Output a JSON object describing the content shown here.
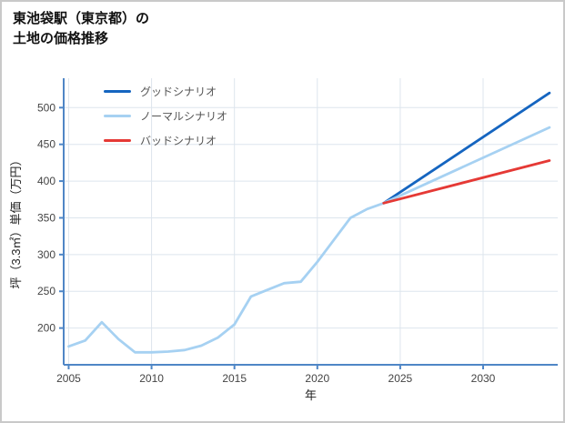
{
  "title": {
    "line1": "東池袋駅（東京都）の",
    "line2": "土地の価格推移"
  },
  "chart_data": {
    "type": "line",
    "title": "東池袋駅（東京都）の土地の価格推移",
    "xlabel": "年",
    "ylabel": "坪（3.3㎡）単価（万円）",
    "xlim": [
      2004.7,
      2034.5
    ],
    "ylim": [
      150,
      540
    ],
    "xticks": [
      2005,
      2010,
      2015,
      2020,
      2025,
      2030
    ],
    "yticks": [
      200,
      250,
      300,
      350,
      400,
      450,
      500
    ],
    "grid": true,
    "legend_position": "top-left",
    "colors": {
      "axis": "#4f86c6",
      "grid": "#dde5ed",
      "good": "#1565c0",
      "normal": "#a6d1f2",
      "bad": "#e53935"
    },
    "series": [
      {
        "name": "グッドシナリオ",
        "color": "#1565c0",
        "x": [
          2024,
          2034
        ],
        "values": [
          370,
          520
        ]
      },
      {
        "name": "ノーマルシナリオ",
        "color": "#a6d1f2",
        "x": [
          2005,
          2006,
          2007,
          2008,
          2009,
          2010,
          2011,
          2012,
          2013,
          2014,
          2015,
          2016,
          2017,
          2018,
          2019,
          2020,
          2021,
          2022,
          2023,
          2024,
          2034
        ],
        "values": [
          175,
          183,
          208,
          185,
          167,
          167,
          168,
          170,
          176,
          187,
          205,
          243,
          252,
          261,
          263,
          290,
          320,
          350,
          362,
          370,
          473
        ]
      },
      {
        "name": "バッドシナリオ",
        "color": "#e53935",
        "x": [
          2024,
          2034
        ],
        "values": [
          370,
          428
        ]
      }
    ]
  }
}
